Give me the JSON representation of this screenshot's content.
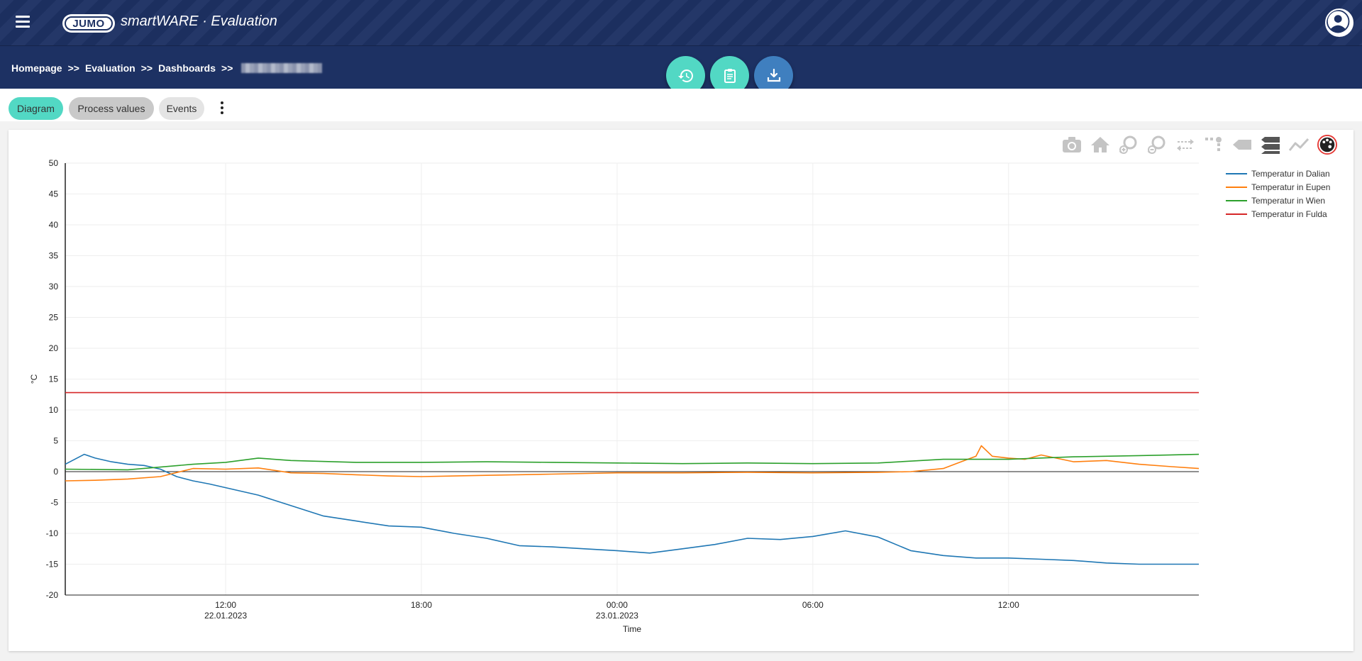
{
  "header": {
    "logo_text": "JUMO",
    "app_name": "smartWARE · Evaluation",
    "menu_icon": "hamburger-icon",
    "user_icon": "user-avatar-icon"
  },
  "breadcrumb": {
    "items": [
      "Homepage",
      "Evaluation",
      "Dashboards"
    ],
    "separator": ">>"
  },
  "actions": {
    "history_icon": "history-icon",
    "clipboard_icon": "clipboard-icon",
    "download_icon": "download-icon",
    "teal": "#52d8c4",
    "blue": "#3f7fbf"
  },
  "tabs": [
    {
      "label": "Diagram",
      "active": true
    },
    {
      "label": "Process values",
      "active": false
    },
    {
      "label": "Events",
      "active": false
    }
  ],
  "toolbar_icons": [
    "camera-icon",
    "home-icon",
    "zoom-in-icon",
    "zoom-out-icon",
    "pan-icon",
    "select-icon",
    "hover-closest-icon",
    "hover-compare-icon",
    "spike-lines-icon",
    "palette-icon"
  ],
  "chart_data": {
    "type": "line",
    "ylabel": "°C",
    "xlabel": "Time",
    "ylim": [
      -20,
      50
    ],
    "yticks": [
      50,
      45,
      40,
      35,
      30,
      25,
      20,
      15,
      10,
      5,
      0,
      -5,
      -10,
      -15,
      -20
    ],
    "x_range": [
      "2023-01-22 07:05",
      "2023-01-23 17:50"
    ],
    "xticks": [
      {
        "time": "2023-01-22 12:00",
        "label": "12:00",
        "sub": "22.01.2023"
      },
      {
        "time": "2023-01-22 18:00",
        "label": "18:00",
        "sub": ""
      },
      {
        "time": "2023-01-23 00:00",
        "label": "00:00",
        "sub": "23.01.2023"
      },
      {
        "time": "2023-01-23 06:00",
        "label": "06:00",
        "sub": ""
      },
      {
        "time": "2023-01-23 12:00",
        "label": "12:00",
        "sub": ""
      }
    ],
    "grid": true,
    "legend_position": "top-right",
    "series": [
      {
        "name": "Temperatur in Dalian",
        "color": "#1f77b4",
        "x": [
          "2023-01-22 07:05",
          "2023-01-22 07:40",
          "2023-01-22 08:00",
          "2023-01-22 08:30",
          "2023-01-22 09:00",
          "2023-01-22 09:30",
          "2023-01-22 10:00",
          "2023-01-22 10:30",
          "2023-01-22 11:00",
          "2023-01-22 11:30",
          "2023-01-22 12:00",
          "2023-01-22 13:00",
          "2023-01-22 14:00",
          "2023-01-22 15:00",
          "2023-01-22 16:00",
          "2023-01-22 17:00",
          "2023-01-22 18:00",
          "2023-01-22 19:00",
          "2023-01-22 20:00",
          "2023-01-22 21:00",
          "2023-01-22 22:00",
          "2023-01-22 23:00",
          "2023-01-23 00:00",
          "2023-01-23 01:00",
          "2023-01-23 02:00",
          "2023-01-23 03:00",
          "2023-01-23 04:00",
          "2023-01-23 05:00",
          "2023-01-23 06:00",
          "2023-01-23 07:00",
          "2023-01-23 08:00",
          "2023-01-23 09:00",
          "2023-01-23 10:00",
          "2023-01-23 11:00",
          "2023-01-23 12:00",
          "2023-01-23 13:00",
          "2023-01-23 14:00",
          "2023-01-23 15:00",
          "2023-01-23 16:00",
          "2023-01-23 17:00",
          "2023-01-23 17:50"
        ],
        "y": [
          1.2,
          2.8,
          2.2,
          1.6,
          1.2,
          1.0,
          0.4,
          -0.8,
          -1.5,
          -2.0,
          -2.6,
          -3.8,
          -5.5,
          -7.2,
          -8.0,
          -8.8,
          -9.0,
          -10.0,
          -10.8,
          -12.0,
          -12.2,
          -12.5,
          -12.8,
          -13.2,
          -12.5,
          -11.8,
          -10.8,
          -11.0,
          -10.5,
          -9.6,
          -10.6,
          -12.8,
          -13.6,
          -14.0,
          -14.0,
          -14.2,
          -14.4,
          -14.8,
          -15.0,
          -15.0,
          -15.0
        ]
      },
      {
        "name": "Temperatur in Eupen",
        "color": "#ff7f0e",
        "x": [
          "2023-01-22 07:05",
          "2023-01-22 08:00",
          "2023-01-22 09:00",
          "2023-01-22 10:00",
          "2023-01-22 11:00",
          "2023-01-22 12:00",
          "2023-01-22 13:00",
          "2023-01-22 14:00",
          "2023-01-22 15:00",
          "2023-01-22 16:00",
          "2023-01-22 17:00",
          "2023-01-22 18:00",
          "2023-01-22 20:00",
          "2023-01-22 22:00",
          "2023-01-23 00:00",
          "2023-01-23 02:00",
          "2023-01-23 04:00",
          "2023-01-23 06:00",
          "2023-01-23 08:00",
          "2023-01-23 09:00",
          "2023-01-23 10:00",
          "2023-01-23 10:30",
          "2023-01-23 11:00",
          "2023-01-23 11:10",
          "2023-01-23 11:30",
          "2023-01-23 12:00",
          "2023-01-23 12:30",
          "2023-01-23 13:00",
          "2023-01-23 14:00",
          "2023-01-23 15:00",
          "2023-01-23 16:00",
          "2023-01-23 17:00",
          "2023-01-23 17:50"
        ],
        "y": [
          -1.5,
          -1.4,
          -1.2,
          -0.8,
          0.5,
          0.4,
          0.6,
          -0.2,
          -0.3,
          -0.5,
          -0.7,
          -0.8,
          -0.6,
          -0.4,
          -0.2,
          -0.2,
          -0.1,
          -0.2,
          -0.1,
          0.0,
          0.5,
          1.5,
          2.5,
          4.2,
          2.5,
          2.2,
          2.0,
          2.7,
          1.6,
          1.8,
          1.2,
          0.8,
          0.5
        ]
      },
      {
        "name": "Temperatur in Wien",
        "color": "#2ca02c",
        "x": [
          "2023-01-22 07:05",
          "2023-01-22 09:00",
          "2023-01-22 11:00",
          "2023-01-22 12:00",
          "2023-01-22 13:00",
          "2023-01-22 14:00",
          "2023-01-22 16:00",
          "2023-01-22 18:00",
          "2023-01-22 20:00",
          "2023-01-22 22:00",
          "2023-01-23 00:00",
          "2023-01-23 02:00",
          "2023-01-23 04:00",
          "2023-01-23 06:00",
          "2023-01-23 08:00",
          "2023-01-23 10:00",
          "2023-01-23 12:00",
          "2023-01-23 14:00",
          "2023-01-23 16:00",
          "2023-01-23 17:50"
        ],
        "y": [
          0.4,
          0.3,
          1.2,
          1.5,
          2.2,
          1.8,
          1.5,
          1.5,
          1.6,
          1.5,
          1.4,
          1.3,
          1.4,
          1.3,
          1.4,
          2.0,
          2.0,
          2.4,
          2.6,
          2.8
        ]
      },
      {
        "name": "Temperatur in Fulda",
        "color": "#d62728",
        "x": [
          "2023-01-22 07:05",
          "2023-01-23 17:50"
        ],
        "y": [
          12.8,
          12.8
        ]
      }
    ]
  }
}
